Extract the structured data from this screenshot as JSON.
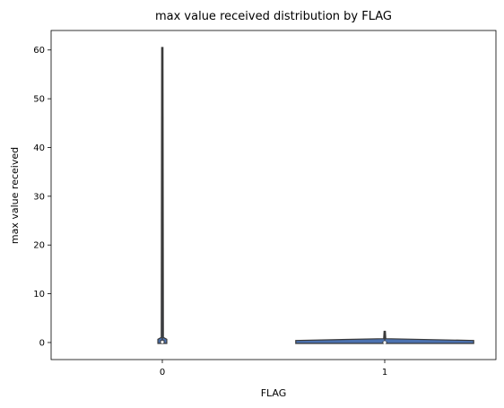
{
  "chart_data": {
    "type": "violin",
    "title": "max value received  distribution by FLAG",
    "xlabel": "FLAG",
    "ylabel": "max value received",
    "categories": [
      "0",
      "1"
    ],
    "ylim": [
      -3.5,
      64
    ],
    "yticks": [
      0,
      10,
      20,
      30,
      40,
      50,
      60
    ],
    "ytick_labels": [
      "0",
      "10",
      "20",
      "30",
      "40",
      "50",
      "60"
    ],
    "grid": false,
    "series": [
      {
        "category": "0",
        "min": 0,
        "max": 60.5,
        "q1": 0,
        "median": 0.1,
        "q3": 0.3,
        "density_width": 0.04
      },
      {
        "category": "1",
        "min": 0,
        "max": 2.3,
        "q1": 0,
        "median": 0,
        "q3": 0.05,
        "density_width": 0.8
      }
    ],
    "colors": {
      "fill": "#4c72b0",
      "edge": "#3a3a3a",
      "inner": "#3a3a3a",
      "median": "#ffffff"
    }
  }
}
